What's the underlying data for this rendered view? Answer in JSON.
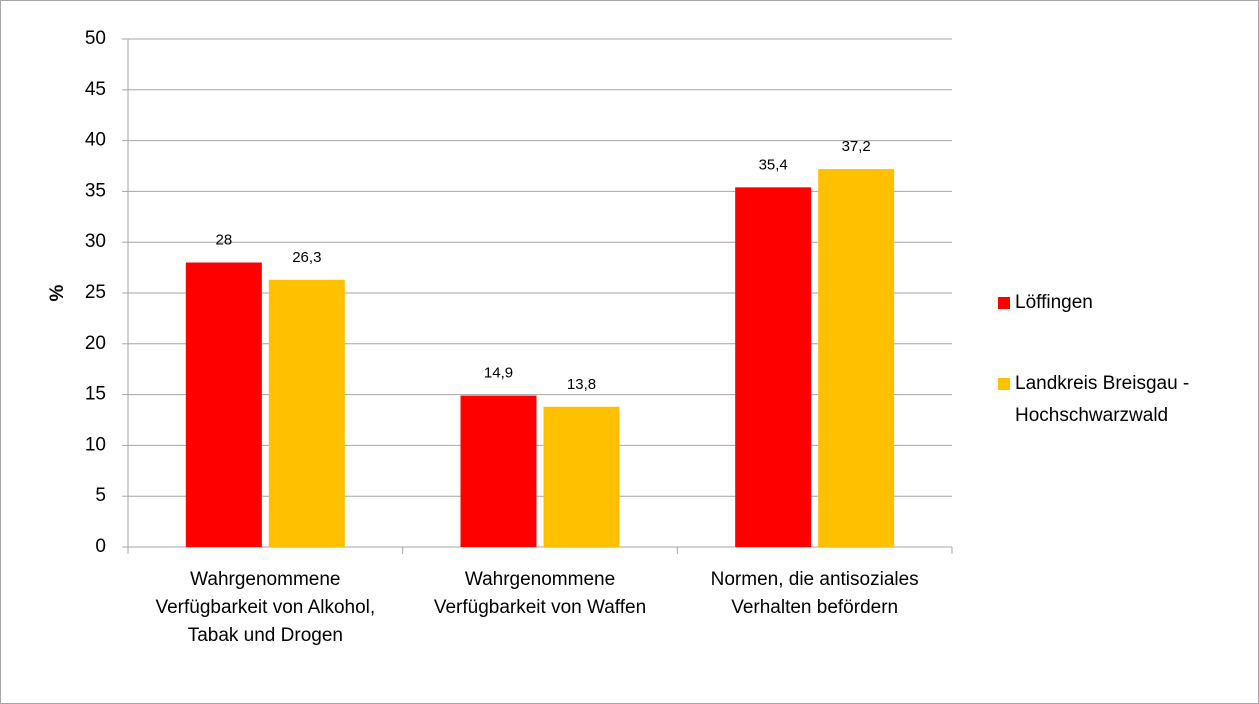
{
  "chart_data": {
    "type": "bar",
    "categories": [
      "Wahrgenommene Verfügbarkeit von Alkohol, Tabak und Drogen",
      "Wahrgenommene Verfügbarkeit von Waffen",
      "Normen, die antisoziales Verhalten befördern"
    ],
    "series": [
      {
        "name": "Löffingen",
        "color": "#ff0000",
        "values": [
          28,
          14.9,
          35.4
        ],
        "value_labels": [
          "28",
          "14,9",
          "35,4"
        ]
      },
      {
        "name": "Landkreis Breisgau - Hochschwarzwald",
        "color": "#ffc000",
        "values": [
          26.3,
          13.8,
          37.2
        ],
        "value_labels": [
          "26,3",
          "13,8",
          "37,2"
        ]
      }
    ],
    "y_label": "%",
    "ylim": [
      0,
      50
    ],
    "yticks": [
      0,
      5,
      10,
      15,
      20,
      25,
      30,
      35,
      40,
      45,
      50
    ],
    "grid": true,
    "legend": "right"
  }
}
